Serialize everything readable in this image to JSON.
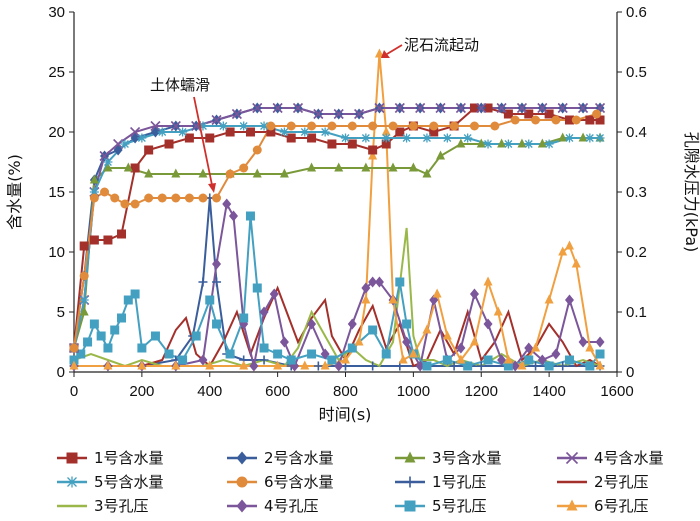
{
  "chart_data": {
    "type": "line",
    "xlabel": "时间(s)",
    "ylabel_left": "含水量(%)",
    "ylabel_right": "孔隙水压力(kPa)",
    "xlim": [
      0,
      1600
    ],
    "ylim_left": [
      0,
      30
    ],
    "ylim_right": [
      0,
      0.6
    ],
    "x_ticks": [
      "0",
      "200",
      "400",
      "600",
      "800",
      "1000",
      "1200",
      "1400",
      "1600"
    ],
    "y_left_ticks": [
      "0",
      "5",
      "10",
      "15",
      "20",
      "25",
      "30"
    ],
    "y_right_ticks": [
      "0",
      "0.1",
      "0.2",
      "0.3",
      "0.4",
      "0.5",
      "0.6"
    ],
    "annotations": [
      {
        "text": "土体蠕滑",
        "x": 410,
        "y": 14.5,
        "axis": "left"
      },
      {
        "text": "泥石流起动",
        "x": 900,
        "y": 0.53,
        "axis": "right"
      }
    ],
    "series": [
      {
        "name": "1号含水量",
        "axis": "left",
        "color": "#a3302b",
        "marker": "square",
        "x": [
          0,
          30,
          60,
          100,
          140,
          180,
          220,
          280,
          340,
          400,
          460,
          520,
          580,
          640,
          700,
          760,
          820,
          880,
          920,
          960,
          1000,
          1060,
          1120,
          1180,
          1220,
          1280,
          1340,
          1400,
          1460,
          1520,
          1550
        ],
        "y": [
          2,
          10.5,
          11,
          11,
          11.5,
          17,
          18.5,
          19,
          19.5,
          19.5,
          20,
          20,
          20,
          19.5,
          19.5,
          19,
          19,
          18.5,
          19,
          20,
          20.5,
          20,
          20.5,
          22,
          22,
          21.5,
          21.5,
          21.5,
          21,
          21,
          21
        ]
      },
      {
        "name": "2号含水量",
        "axis": "left",
        "color": "#3a5d9c",
        "marker": "diamond",
        "x": [
          0,
          30,
          60,
          90,
          130,
          180,
          240,
          300,
          360,
          420,
          480,
          540,
          600,
          660,
          720,
          780,
          840,
          900,
          960,
          1020,
          1080,
          1140,
          1200,
          1260,
          1320,
          1380,
          1440,
          1500,
          1550
        ],
        "y": [
          2,
          8,
          16,
          18,
          18.5,
          19.5,
          20,
          20.5,
          20.5,
          21,
          21.5,
          22,
          22,
          22,
          21.5,
          21.5,
          21.5,
          22,
          22,
          22,
          22,
          22,
          22,
          22,
          22,
          22,
          22,
          22,
          22
        ]
      },
      {
        "name": "3号含水量",
        "axis": "left",
        "color": "#7a9a3a",
        "marker": "triangle",
        "x": [
          0,
          30,
          60,
          100,
          160,
          220,
          300,
          380,
          460,
          540,
          620,
          700,
          780,
          860,
          940,
          1000,
          1040,
          1080,
          1140,
          1200,
          1260,
          1320,
          1380,
          1440,
          1500,
          1550
        ],
        "y": [
          2,
          5,
          16,
          17,
          17,
          16.5,
          16.5,
          16.5,
          16.5,
          16.5,
          16.5,
          17,
          17,
          17,
          17,
          17,
          16.5,
          18,
          19,
          19,
          19,
          19,
          19,
          19.5,
          19.5,
          19.5
        ]
      },
      {
        "name": "4号含水量",
        "axis": "left",
        "color": "#7b569a",
        "marker": "x",
        "x": [
          0,
          30,
          60,
          90,
          130,
          180,
          240,
          300,
          360,
          420,
          480,
          540,
          600,
          660,
          720,
          780,
          840,
          900,
          960,
          1020,
          1080,
          1140,
          1200,
          1260,
          1320,
          1380,
          1440,
          1500,
          1550
        ],
        "y": [
          2,
          6,
          15,
          18,
          19,
          20,
          20.5,
          20.5,
          20.5,
          21,
          21.5,
          22,
          22,
          22,
          21.5,
          21.5,
          21.5,
          22,
          22,
          22,
          22,
          22,
          22,
          22,
          22,
          22,
          22,
          22,
          22
        ]
      },
      {
        "name": "5号含水量",
        "axis": "left",
        "color": "#44a0c0",
        "marker": "star",
        "x": [
          0,
          30,
          60,
          100,
          150,
          200,
          260,
          320,
          380,
          440,
          500,
          560,
          620,
          680,
          740,
          800,
          860,
          920,
          980,
          1040,
          1100,
          1160,
          1220,
          1280,
          1340,
          1400,
          1460,
          1520,
          1550
        ],
        "y": [
          2,
          6,
          15,
          17.5,
          19,
          19.5,
          20,
          20,
          20.5,
          20.5,
          20.5,
          20.5,
          20,
          20,
          20,
          19.5,
          19.5,
          19.5,
          19.5,
          19.5,
          19.5,
          19.5,
          19,
          19,
          19,
          19,
          19.5,
          19.5,
          19.5
        ]
      },
      {
        "name": "6号含水量",
        "axis": "left",
        "color": "#e08a3c",
        "marker": "circle",
        "x": [
          0,
          30,
          60,
          90,
          120,
          150,
          180,
          220,
          260,
          300,
          340,
          380,
          420,
          460,
          500,
          540,
          580,
          640,
          700,
          760,
          820,
          880,
          940,
          1000,
          1060,
          1120,
          1180,
          1240,
          1300,
          1360,
          1420,
          1480,
          1540
        ],
        "y": [
          2,
          8,
          14.5,
          15,
          14.5,
          14,
          14,
          14.5,
          14.5,
          14.5,
          14.5,
          14.5,
          14.5,
          16.5,
          17,
          18.5,
          20.5,
          20.5,
          20.5,
          20.5,
          20.5,
          20.5,
          20.5,
          20.5,
          20.5,
          20.5,
          20.5,
          20.5,
          21,
          21,
          21,
          21,
          21.5
        ]
      },
      {
        "name": "1号孔压",
        "axis": "right",
        "color": "#3a5d9c",
        "marker": "plus",
        "x": [
          0,
          100,
          200,
          300,
          350,
          380,
          400,
          420,
          450,
          500,
          560,
          640,
          720,
          800,
          880,
          960,
          1040,
          1120,
          1200,
          1280,
          1360,
          1440,
          1550
        ],
        "y": [
          0.01,
          0.01,
          0.01,
          0.02,
          0.06,
          0.15,
          0.29,
          0.15,
          0.03,
          0.02,
          0.02,
          0.01,
          0.01,
          0.01,
          0.01,
          0.01,
          0.01,
          0.01,
          0.01,
          0.01,
          0.01,
          0.01,
          0.01
        ]
      },
      {
        "name": "2号孔压",
        "axis": "right",
        "color": "#a3302b",
        "marker": "none",
        "x": [
          0,
          100,
          200,
          260,
          300,
          330,
          360,
          400,
          440,
          480,
          520,
          560,
          600,
          620,
          660,
          700,
          740,
          760,
          800,
          840,
          880,
          920,
          960,
          1000,
          1040,
          1080,
          1120,
          1160,
          1200,
          1240,
          1280,
          1320,
          1360,
          1400,
          1440,
          1480,
          1520,
          1550
        ],
        "y": [
          0.01,
          0.01,
          0.01,
          0.02,
          0.07,
          0.09,
          0.03,
          0.01,
          0.05,
          0.1,
          0.03,
          0.09,
          0.14,
          0.11,
          0.05,
          0.09,
          0.12,
          0.06,
          0.02,
          0.07,
          0.11,
          0.04,
          0.08,
          0.01,
          0.02,
          0.07,
          0.03,
          0.1,
          0.02,
          0.05,
          0.1,
          0.02,
          0.04,
          0.08,
          0.05,
          0.01,
          0.02,
          0.01
        ]
      },
      {
        "name": "3号孔压",
        "axis": "right",
        "color": "#9ab84a",
        "marker": "none",
        "x": [
          0,
          50,
          100,
          150,
          200,
          260,
          320,
          380,
          440,
          500,
          560,
          620,
          660,
          700,
          740,
          780,
          820,
          860,
          900,
          940,
          980,
          1000,
          1020,
          1060,
          1100,
          1140,
          1200,
          1260,
          1320,
          1380,
          1440,
          1500,
          1550
        ],
        "y": [
          0.02,
          0.03,
          0.02,
          0.01,
          0.02,
          0.01,
          0.01,
          0.01,
          0.02,
          0.01,
          0.02,
          0.01,
          0.04,
          0.1,
          0.06,
          0.02,
          0.04,
          0.02,
          0.01,
          0.05,
          0.24,
          0.06,
          0.02,
          0.02,
          0.01,
          0.02,
          0.01,
          0.03,
          0.01,
          0.02,
          0.01,
          0.02,
          0.01
        ]
      },
      {
        "name": "4号孔压",
        "axis": "right",
        "color": "#7b569a",
        "marker": "diamond",
        "x": [
          0,
          100,
          200,
          300,
          380,
          420,
          450,
          470,
          500,
          530,
          560,
          590,
          620,
          650,
          700,
          740,
          780,
          820,
          860,
          880,
          900,
          940,
          980,
          1020,
          1060,
          1100,
          1140,
          1180,
          1220,
          1260,
          1300,
          1340,
          1380,
          1420,
          1460,
          1500,
          1550
        ],
        "y": [
          0.01,
          0.01,
          0.01,
          0.01,
          0.02,
          0.18,
          0.28,
          0.26,
          0.08,
          0.01,
          0.1,
          0.13,
          0.05,
          0.01,
          0.08,
          0.03,
          0.01,
          0.08,
          0.14,
          0.15,
          0.15,
          0.12,
          0.05,
          0.01,
          0.12,
          0.02,
          0.04,
          0.13,
          0.08,
          0.02,
          0.01,
          0.04,
          0.02,
          0.03,
          0.12,
          0.05,
          0.05
        ]
      },
      {
        "name": "5号孔压",
        "axis": "right",
        "color": "#44a0c0",
        "marker": "square",
        "x": [
          0,
          20,
          40,
          60,
          80,
          100,
          120,
          140,
          160,
          180,
          200,
          240,
          280,
          320,
          360,
          400,
          420,
          460,
          500,
          520,
          540,
          560,
          600,
          640,
          700,
          760,
          820,
          880,
          920,
          960,
          980,
          1000,
          1040,
          1100,
          1160,
          1220,
          1280,
          1340,
          1400,
          1460,
          1520,
          1550
        ],
        "y": [
          0.02,
          0.03,
          0.05,
          0.08,
          0.06,
          0.04,
          0.07,
          0.09,
          0.12,
          0.13,
          0.04,
          0.06,
          0.03,
          0.02,
          0.06,
          0.12,
          0.08,
          0.03,
          0.09,
          0.26,
          0.14,
          0.04,
          0.03,
          0.02,
          0.03,
          0.02,
          0.04,
          0.07,
          0.03,
          0.15,
          0.08,
          0.03,
          0.01,
          0.02,
          0.01,
          0.02,
          0.01,
          0.02,
          0.01,
          0.02,
          0.01,
          0.03
        ]
      },
      {
        "name": "6号孔压",
        "axis": "right",
        "color": "#f0a040",
        "marker": "triangle",
        "x": [
          0,
          100,
          200,
          300,
          400,
          500,
          600,
          680,
          740,
          800,
          840,
          860,
          880,
          900,
          920,
          940,
          970,
          1000,
          1040,
          1070,
          1100,
          1140,
          1180,
          1220,
          1250,
          1280,
          1320,
          1360,
          1400,
          1440,
          1460,
          1480,
          1520,
          1550
        ],
        "y": [
          0.01,
          0.01,
          0.01,
          0.01,
          0.01,
          0.01,
          0.01,
          0.01,
          0.01,
          0.02,
          0.05,
          0.12,
          0.36,
          0.53,
          0.4,
          0.12,
          0.02,
          0.03,
          0.07,
          0.13,
          0.06,
          0.02,
          0.05,
          0.15,
          0.1,
          0.02,
          0.01,
          0.04,
          0.12,
          0.2,
          0.21,
          0.18,
          0.04,
          0.01
        ]
      }
    ]
  }
}
